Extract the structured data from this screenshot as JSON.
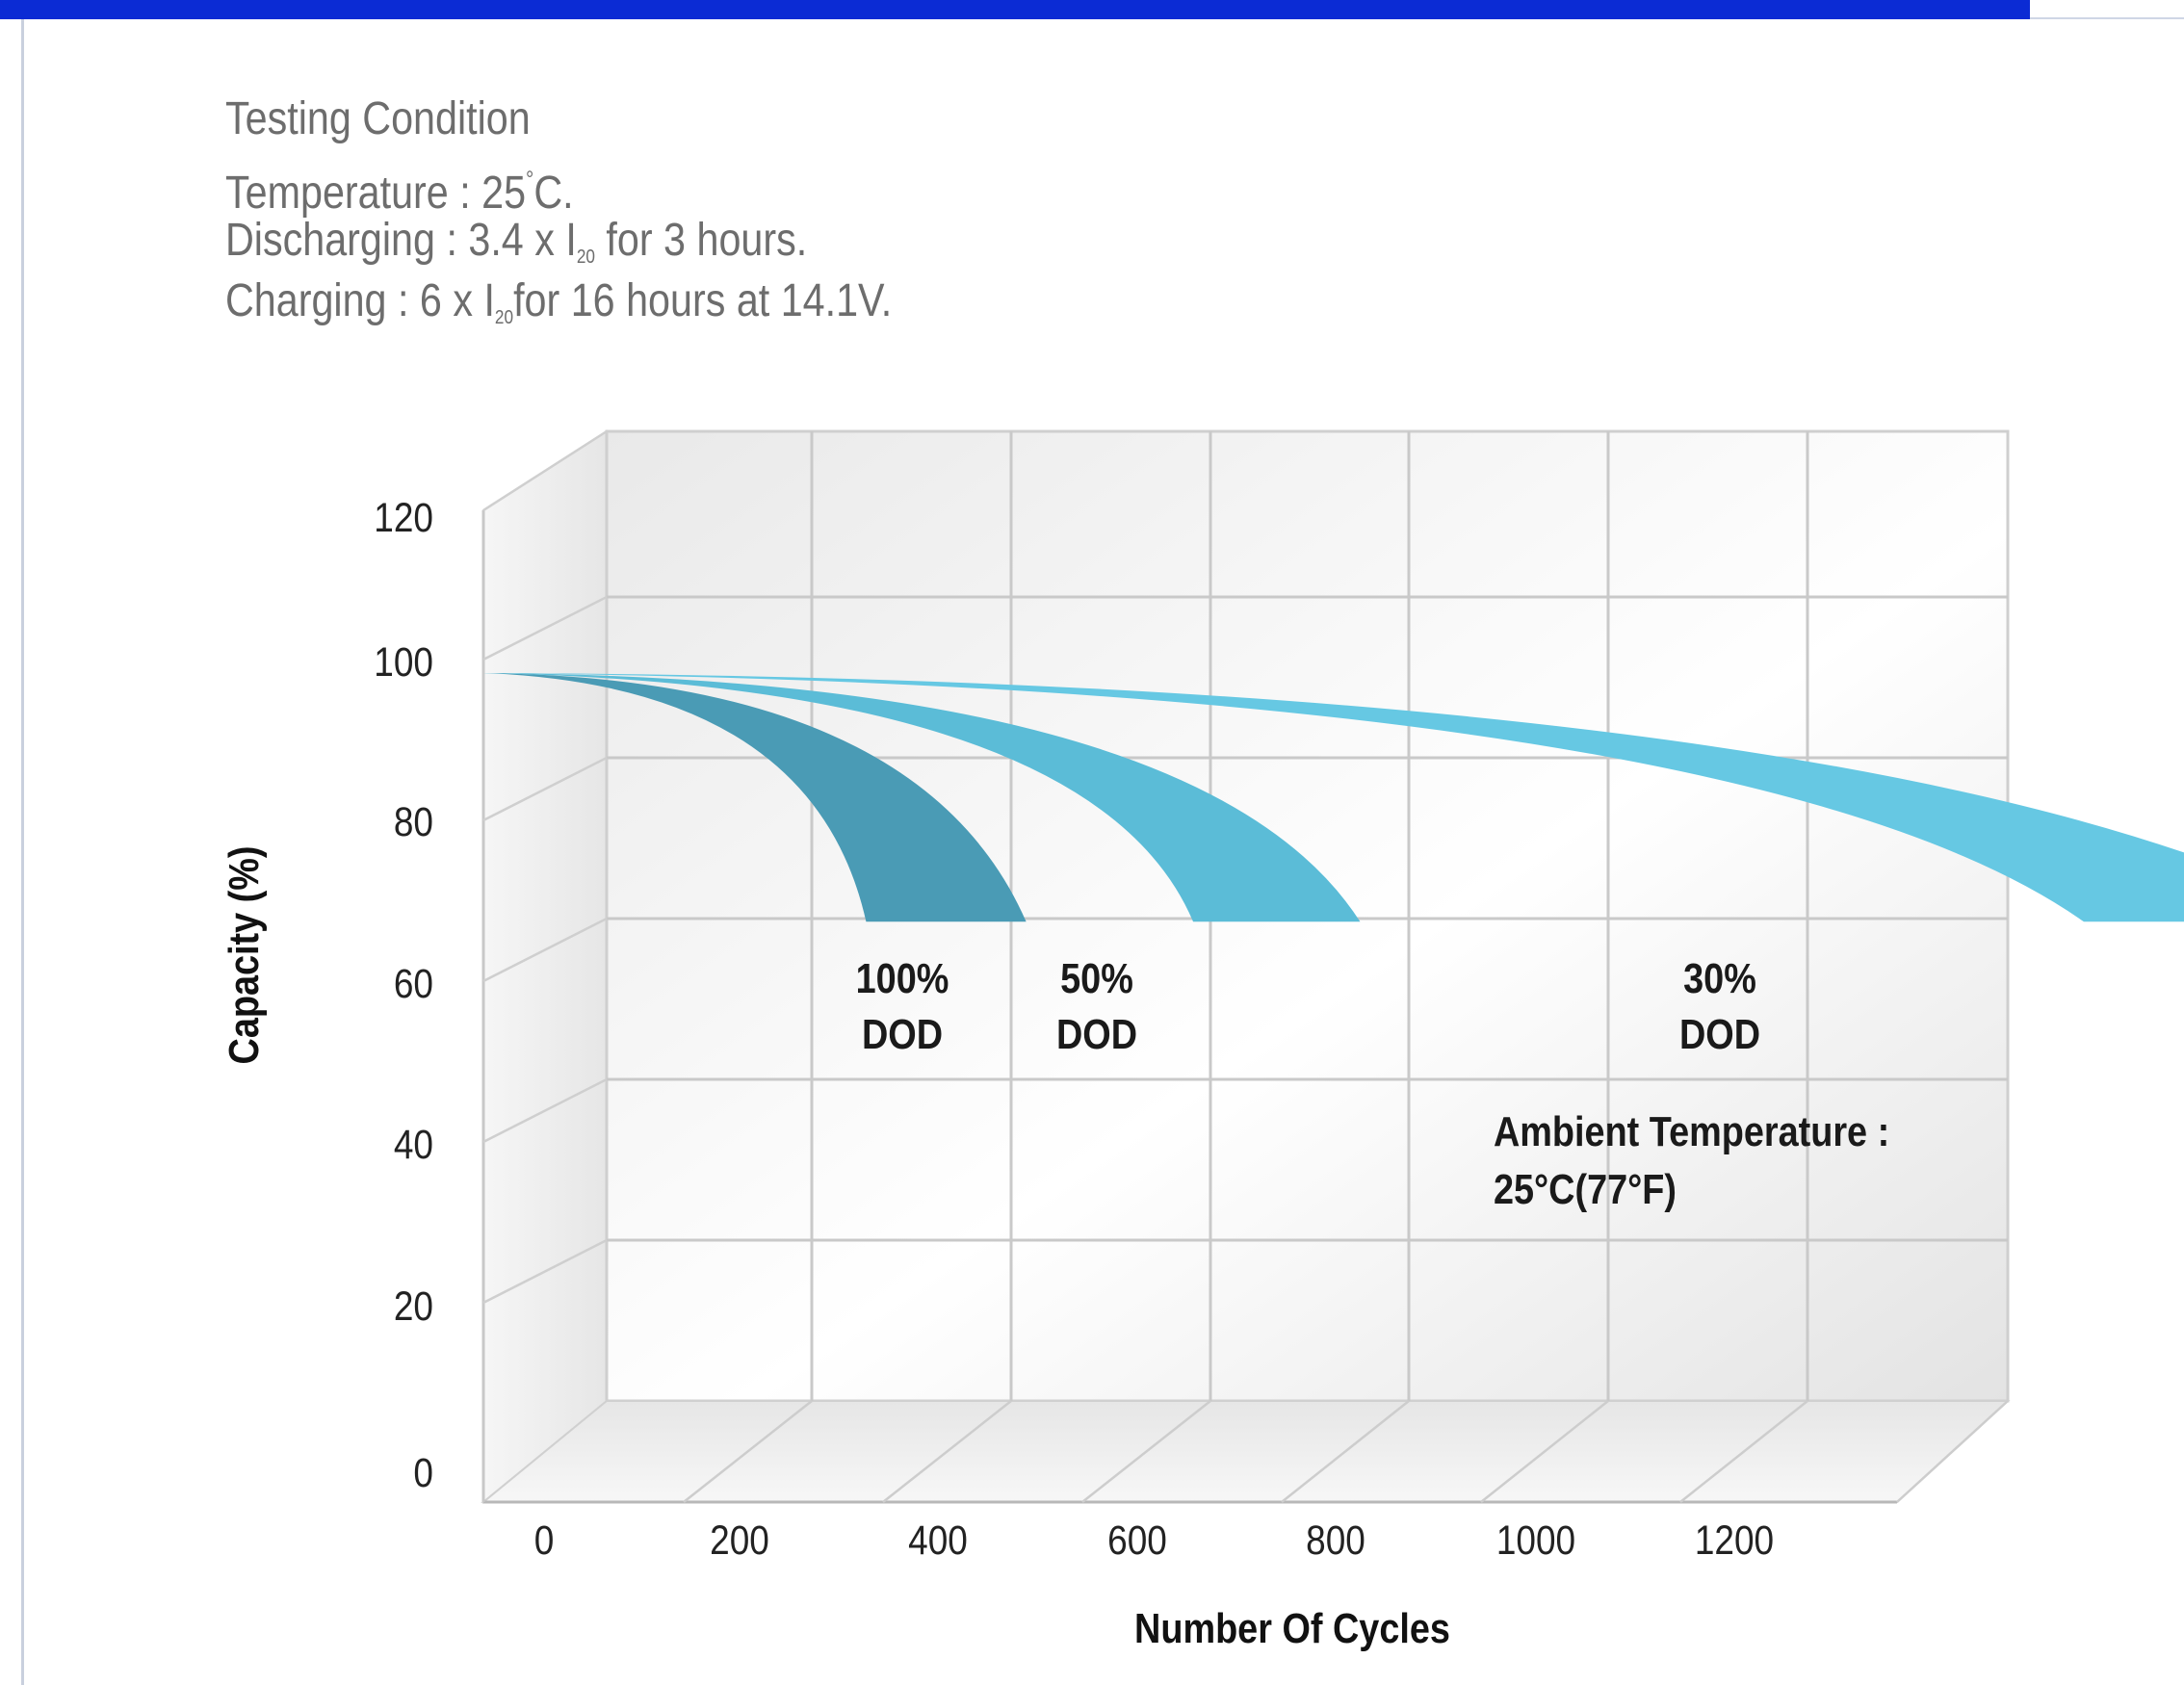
{
  "conditions": {
    "heading": "Testing Condition",
    "temperature_prefix": "Temperature : 25",
    "temperature_suffix": "C.",
    "discharging_prefix": "Discharging : 3.4 x I",
    "discharging_sub": "20",
    "discharging_suffix": " for 3 hours.",
    "charging_prefix": "Charging : 6 x I",
    "charging_sub": "20",
    "charging_suffix": "for 16 hours at 14.1V.",
    "degree_symbol": "°"
  },
  "chart_data": {
    "type": "area",
    "title": "",
    "xlabel": "Number Of Cycles",
    "ylabel": "Capacity (%)",
    "xlim": [
      0,
      1350
    ],
    "ylim": [
      0,
      120
    ],
    "x_ticks": [
      "0",
      "200",
      "400",
      "600",
      "800",
      "1000",
      "1200"
    ],
    "y_ticks": [
      "0",
      "20",
      "40",
      "60",
      "80",
      "100",
      "120"
    ],
    "grid": true,
    "style": "3d-box",
    "series": [
      {
        "name": "100% DOD",
        "label_lines": [
          "100%",
          "DOD"
        ],
        "color": "#4a9bb5",
        "start": {
          "x": 0,
          "y": 100
        },
        "end_range": [
          275,
          390
        ],
        "end_y": 70,
        "upper_mid": {
          "x": 220,
          "y": 88
        },
        "lower_mid": {
          "x": 180,
          "y": 88
        }
      },
      {
        "name": "50% DOD",
        "label_lines": [
          "50%",
          "DOD"
        ],
        "color": "#5bbcd7",
        "start": {
          "x": 0,
          "y": 100
        },
        "end_range": [
          510,
          630
        ],
        "end_y": 70,
        "upper_mid": {
          "x": 380,
          "y": 91
        },
        "lower_mid": {
          "x": 330,
          "y": 91
        }
      },
      {
        "name": "30% DOD",
        "label_lines": [
          "30%",
          "DOD"
        ],
        "color": "#66c8e3",
        "start": {
          "x": 0,
          "y": 100
        },
        "end_range": [
          1150,
          1340
        ],
        "end_y": 70,
        "upper_mid": {
          "x": 600,
          "y": 96
        },
        "lower_mid": {
          "x": 550,
          "y": 93
        }
      }
    ],
    "annotations": [
      {
        "text": "Ambient Temperature :",
        "type": "note"
      },
      {
        "text": "25°C(77°F)",
        "type": "note"
      }
    ]
  }
}
